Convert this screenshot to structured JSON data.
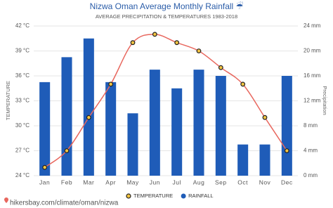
{
  "chart_data": {
    "type": "bar-line",
    "title": "Nizwa Oman Average Monthly Rainfall ☔",
    "subtitle": "AVERAGE PRECIPITATION & TEMPERATURES 1983-2018",
    "y_label": "TEMPERATURE",
    "y2_label": "Precipitation",
    "categories": [
      "Jan",
      "Feb",
      "Mar",
      "Apr",
      "May",
      "Jun",
      "Jul",
      "Aug",
      "Sep",
      "Oct",
      "Nov",
      "Dec"
    ],
    "series": [
      {
        "name": "TEMPERATURE",
        "kind": "line",
        "axis": "y",
        "color": "#e8675e",
        "values": [
          25,
          27,
          31,
          35,
          40,
          41,
          40,
          39,
          37,
          35,
          31,
          27
        ]
      },
      {
        "name": "RAINFALL",
        "kind": "bar",
        "axis": "y2",
        "color": "#1f5cb8",
        "values": [
          15,
          19,
          22,
          15,
          10,
          17,
          14,
          17,
          16,
          5,
          5,
          16
        ]
      }
    ],
    "ylim": [
      24,
      42
    ],
    "yticks": [
      {
        "value": 24,
        "label": "24 °C"
      },
      {
        "value": 27,
        "label": "27 °C"
      },
      {
        "value": 30,
        "label": "30 °C"
      },
      {
        "value": 33,
        "label": "33 °C"
      },
      {
        "value": 36,
        "label": "36 °C"
      },
      {
        "value": 39,
        "label": "39 °C"
      },
      {
        "value": 42,
        "label": "42 °C"
      }
    ],
    "y2lim": [
      0,
      24
    ],
    "y2ticks": [
      {
        "value": 0,
        "label": "0 mm"
      },
      {
        "value": 4,
        "label": "4 mm"
      },
      {
        "value": 8,
        "label": "8 mm"
      },
      {
        "value": 12,
        "label": "12 mm"
      },
      {
        "value": 16,
        "label": "16 mm"
      },
      {
        "value": 20,
        "label": "20 mm"
      },
      {
        "value": 24,
        "label": "24 mm"
      }
    ],
    "grid": true,
    "source": "hikersbay.com/climate/oman/nizwa"
  }
}
